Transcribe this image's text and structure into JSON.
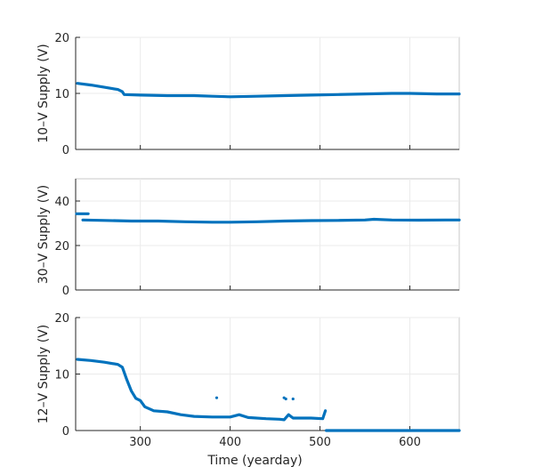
{
  "colors": {
    "series": "#0072BD",
    "grid": "#ebebeb",
    "axis": "#262626",
    "spine": "#c8c8c8"
  },
  "chart_data": [
    {
      "type": "scatter",
      "ylabel": "10–V Supply (V)",
      "xlim": [
        228,
        655
      ],
      "ylim": [
        0,
        20
      ],
      "yticks": [
        0,
        10,
        20
      ],
      "xticks": [
        300,
        400,
        500,
        600
      ],
      "show_xtick_labels": false,
      "grid": true,
      "series": [
        {
          "segments": [
            [
              [
                230,
                11.8
              ],
              [
                245,
                11.5
              ],
              [
                260,
                11.1
              ],
              [
                275,
                10.7
              ],
              [
                280,
                10.3
              ],
              [
                282,
                9.8
              ],
              [
                300,
                9.7
              ],
              [
                330,
                9.6
              ],
              [
                360,
                9.6
              ],
              [
                380,
                9.5
              ],
              [
                400,
                9.4
              ],
              [
                430,
                9.5
              ],
              [
                460,
                9.6
              ],
              [
                490,
                9.7
              ],
              [
                520,
                9.8
              ],
              [
                550,
                9.9
              ],
              [
                580,
                10.0
              ],
              [
                600,
                10.0
              ],
              [
                630,
                9.9
              ],
              [
                655,
                9.9
              ]
            ]
          ]
        }
      ]
    },
    {
      "type": "scatter",
      "ylabel": "30–V Supply (V)",
      "xlim": [
        228,
        655
      ],
      "ylim": [
        0,
        50
      ],
      "yticks": [
        0,
        20,
        40
      ],
      "xticks": [
        300,
        400,
        500,
        600
      ],
      "show_xtick_labels": false,
      "grid": true,
      "series": [
        {
          "segments": [
            [
              [
                229,
                34.3
              ],
              [
                242,
                34.3
              ]
            ],
            [
              [
                236,
                31.5
              ],
              [
                260,
                31.3
              ],
              [
                290,
                31.0
              ],
              [
                320,
                31.0
              ],
              [
                350,
                30.7
              ],
              [
                380,
                30.5
              ],
              [
                400,
                30.5
              ],
              [
                430,
                30.7
              ],
              [
                460,
                31.0
              ],
              [
                490,
                31.2
              ],
              [
                520,
                31.3
              ],
              [
                550,
                31.5
              ],
              [
                560,
                31.8
              ],
              [
                580,
                31.5
              ],
              [
                610,
                31.4
              ],
              [
                640,
                31.5
              ],
              [
                655,
                31.5
              ]
            ]
          ]
        }
      ]
    },
    {
      "type": "scatter",
      "ylabel": "12–V Supply (V)",
      "xlim": [
        228,
        655
      ],
      "ylim": [
        0,
        20
      ],
      "yticks": [
        0,
        10,
        20
      ],
      "xticks": [
        300,
        400,
        500,
        600
      ],
      "xticklabels": [
        "300",
        "400",
        "500",
        "600"
      ],
      "show_xtick_labels": true,
      "xlabel": "Time (yearday)",
      "grid": true,
      "series": [
        {
          "segments": [
            [
              [
                230,
                12.6
              ],
              [
                245,
                12.4
              ],
              [
                260,
                12.1
              ],
              [
                275,
                11.7
              ],
              [
                280,
                11.2
              ],
              [
                285,
                9.0
              ],
              [
                290,
                7.0
              ],
              [
                295,
                5.7
              ],
              [
                300,
                5.3
              ],
              [
                305,
                4.2
              ],
              [
                315,
                3.5
              ],
              [
                330,
                3.3
              ],
              [
                345,
                2.8
              ],
              [
                360,
                2.5
              ],
              [
                380,
                2.4
              ],
              [
                400,
                2.4
              ],
              [
                410,
                2.8
              ],
              [
                420,
                2.3
              ],
              [
                440,
                2.1
              ],
              [
                455,
                2.0
              ],
              [
                460,
                1.9
              ],
              [
                465,
                2.8
              ],
              [
                470,
                2.2
              ],
              [
                490,
                2.2
              ],
              [
                503,
                2.1
              ],
              [
                506,
                3.5
              ]
            ],
            [
              [
                507,
                0
              ],
              [
                530,
                0
              ],
              [
                560,
                0
              ],
              [
                590,
                0
              ],
              [
                620,
                0
              ],
              [
                655,
                0
              ]
            ]
          ],
          "outliers": [
            [
              385,
              5.8
            ],
            [
              460,
              5.8
            ],
            [
              462,
              5.6
            ],
            [
              470,
              5.6
            ]
          ]
        }
      ]
    }
  ]
}
